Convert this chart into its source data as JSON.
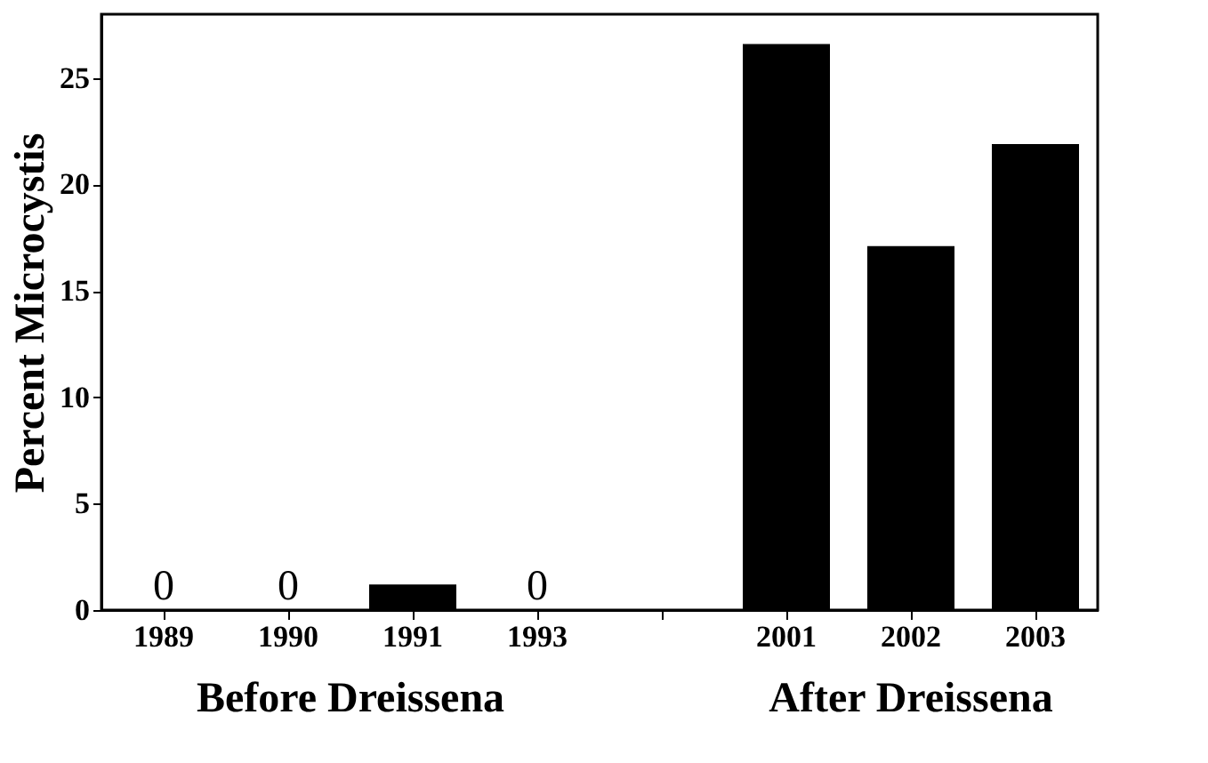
{
  "chart_data": {
    "type": "bar",
    "ylabel": "Percent Microcystis",
    "categories": [
      "1989",
      "1990",
      "1991",
      "1993",
      null,
      "2001",
      "2002",
      "2003"
    ],
    "values": [
      0,
      0,
      1.2,
      0,
      null,
      26.6,
      17.1,
      21.9
    ],
    "value_labels": [
      "0",
      "0",
      null,
      "0",
      null,
      null,
      null,
      null
    ],
    "color": "#000000",
    "ylim": [
      0,
      28
    ],
    "yticks": [
      0,
      5,
      10,
      15,
      20,
      25
    ],
    "grid": false,
    "annotations": [
      "Before Dreissena",
      "After Dreissena"
    ]
  }
}
